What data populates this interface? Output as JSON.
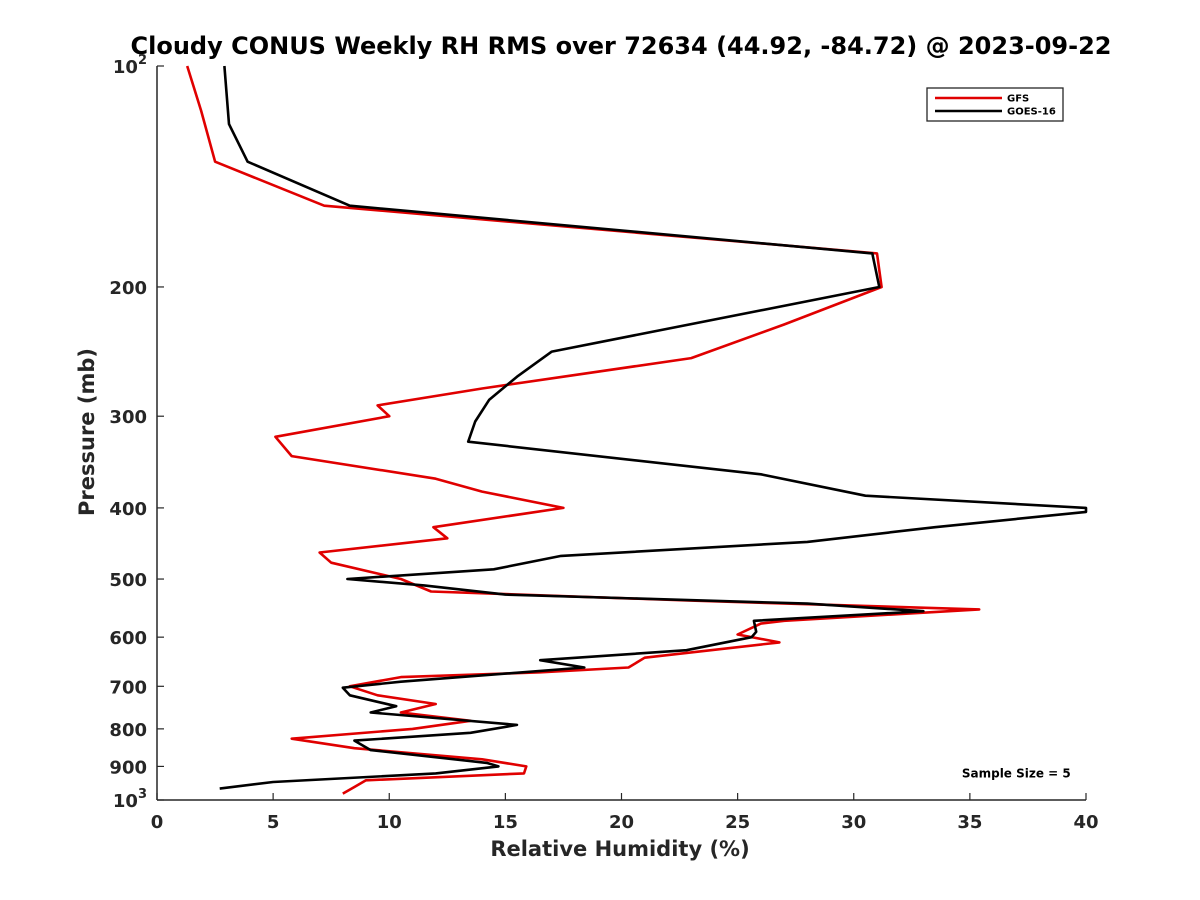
{
  "chart_data": {
    "type": "line",
    "title": "Cloudy CONUS Weekly RH RMS over 72634 (44.92, -84.72) @ 2023-09-22",
    "xlabel": "Relative Humidity (%)",
    "ylabel": "Pressure (mb)",
    "xlim": [
      0,
      40
    ],
    "ylim": [
      100,
      1000
    ],
    "y_scale": "log",
    "y_reversed": true,
    "grid": false,
    "legend_position": "top-right",
    "x_ticks": [
      "0",
      "5",
      "10",
      "15",
      "20",
      "25",
      "30",
      "35",
      "40"
    ],
    "y_ticks": [
      {
        "value": 100,
        "base": "10",
        "exp": "2"
      },
      {
        "value": 200,
        "label": "200"
      },
      {
        "value": 300,
        "label": "300"
      },
      {
        "value": 400,
        "label": "400"
      },
      {
        "value": 500,
        "label": "500"
      },
      {
        "value": 600,
        "label": "600"
      },
      {
        "value": 700,
        "label": "700"
      },
      {
        "value": 800,
        "label": "800"
      },
      {
        "value": 900,
        "label": "900"
      },
      {
        "value": 1000,
        "base": "10",
        "exp": "3"
      }
    ],
    "series": [
      {
        "name": "GFS",
        "color": "#e00000",
        "points": [
          [
            1.3,
            100
          ],
          [
            1.9,
            115
          ],
          [
            2.5,
            135
          ],
          [
            7.2,
            155
          ],
          [
            31.0,
            180
          ],
          [
            31.2,
            200
          ],
          [
            27.0,
            225
          ],
          [
            23.0,
            250
          ],
          [
            14.0,
            275
          ],
          [
            9.5,
            290
          ],
          [
            10.0,
            300
          ],
          [
            5.1,
            320
          ],
          [
            5.8,
            340
          ],
          [
            12.0,
            365
          ],
          [
            14.0,
            380
          ],
          [
            17.5,
            400
          ],
          [
            11.9,
            425
          ],
          [
            12.5,
            440
          ],
          [
            7.0,
            460
          ],
          [
            7.5,
            475
          ],
          [
            10.5,
            500
          ],
          [
            11.8,
            520
          ],
          [
            23.0,
            535
          ],
          [
            35.4,
            550
          ],
          [
            27.0,
            570
          ],
          [
            26.0,
            575
          ],
          [
            25.0,
            595
          ],
          [
            26.8,
            610
          ],
          [
            21.0,
            640
          ],
          [
            20.3,
            660
          ],
          [
            16.5,
            670
          ],
          [
            10.5,
            680
          ],
          [
            8.3,
            700
          ],
          [
            9.5,
            720
          ],
          [
            12.0,
            740
          ],
          [
            10.5,
            760
          ],
          [
            13.5,
            780
          ],
          [
            11.0,
            800
          ],
          [
            5.8,
            825
          ],
          [
            8.5,
            850
          ],
          [
            14.0,
            880
          ],
          [
            15.9,
            900
          ],
          [
            15.8,
            920
          ],
          [
            9.0,
            940
          ],
          [
            8.5,
            960
          ],
          [
            8.0,
            980
          ]
        ]
      },
      {
        "name": "GOES-16",
        "color": "#000000",
        "points": [
          [
            2.9,
            100
          ],
          [
            3.1,
            120
          ],
          [
            3.9,
            135
          ],
          [
            8.3,
            155
          ],
          [
            30.8,
            180
          ],
          [
            31.1,
            200
          ],
          [
            17.0,
            245
          ],
          [
            15.5,
            265
          ],
          [
            14.3,
            285
          ],
          [
            13.7,
            305
          ],
          [
            13.4,
            325
          ],
          [
            26.0,
            360
          ],
          [
            30.5,
            385
          ],
          [
            40.0,
            400
          ],
          [
            40.0,
            405
          ],
          [
            33.5,
            425
          ],
          [
            28.0,
            445
          ],
          [
            17.4,
            465
          ],
          [
            14.5,
            485
          ],
          [
            8.2,
            500
          ],
          [
            11.5,
            510
          ],
          [
            15.0,
            525
          ],
          [
            28.0,
            540
          ],
          [
            33.0,
            553
          ],
          [
            25.7,
            570
          ],
          [
            25.8,
            590
          ],
          [
            25.6,
            600
          ],
          [
            22.8,
            625
          ],
          [
            16.5,
            645
          ],
          [
            18.4,
            660
          ],
          [
            10.5,
            690
          ],
          [
            8.0,
            703
          ],
          [
            8.3,
            720
          ],
          [
            10.3,
            745
          ],
          [
            9.2,
            760
          ],
          [
            15.5,
            790
          ],
          [
            13.5,
            810
          ],
          [
            8.5,
            830
          ],
          [
            9.2,
            855
          ],
          [
            14.2,
            890
          ],
          [
            14.7,
            900
          ],
          [
            12.0,
            920
          ],
          [
            5.0,
            945
          ],
          [
            2.7,
            965
          ]
        ]
      }
    ],
    "annotations": [
      {
        "text": "Sample Size = 5",
        "x": 37.0,
        "y": 920
      }
    ]
  }
}
